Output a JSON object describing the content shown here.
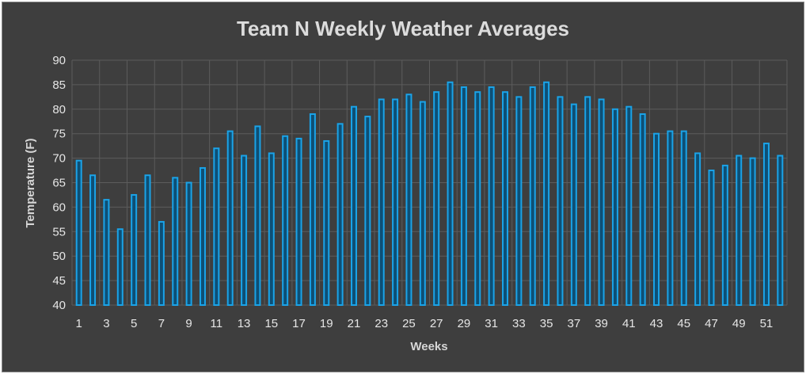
{
  "chart_data": {
    "type": "bar",
    "title": "Team N Weekly Weather Averages",
    "xlabel": "Weeks",
    "ylabel": "Temperature (F)",
    "ylim": [
      40,
      90
    ],
    "yticks": [
      40,
      45,
      50,
      55,
      60,
      65,
      70,
      75,
      80,
      85,
      90
    ],
    "xtick_labels": [
      "1",
      "3",
      "5",
      "7",
      "9",
      "11",
      "13",
      "15",
      "17",
      "19",
      "21",
      "23",
      "25",
      "27",
      "29",
      "31",
      "33",
      "35",
      "37",
      "39",
      "41",
      "43",
      "45",
      "47",
      "49",
      "51"
    ],
    "grid": true,
    "bar_color": "#1aa3e8",
    "background": "#3e3e3e",
    "categories": [
      1,
      2,
      3,
      4,
      5,
      6,
      7,
      8,
      9,
      10,
      11,
      12,
      13,
      14,
      15,
      16,
      17,
      18,
      19,
      20,
      21,
      22,
      23,
      24,
      25,
      26,
      27,
      28,
      29,
      30,
      31,
      32,
      33,
      34,
      35,
      36,
      37,
      38,
      39,
      40,
      41,
      42,
      43,
      44,
      45,
      46,
      47,
      48,
      49,
      50,
      51,
      52
    ],
    "values": [
      69.5,
      66.5,
      61.5,
      55.5,
      62.5,
      66.5,
      57,
      66,
      65,
      68,
      72,
      75.5,
      70.5,
      76.5,
      71,
      74.5,
      74,
      79,
      73.5,
      77,
      80.5,
      78.5,
      82,
      82,
      83,
      81.5,
      83.5,
      85.5,
      84.5,
      83.5,
      84.5,
      83.5,
      82.5,
      84.5,
      85.5,
      82.5,
      81,
      82.5,
      82,
      80,
      80.5,
      79,
      75,
      75.5,
      75.5,
      71,
      67.5,
      68.5,
      70.5,
      70,
      73,
      70.5
    ]
  }
}
